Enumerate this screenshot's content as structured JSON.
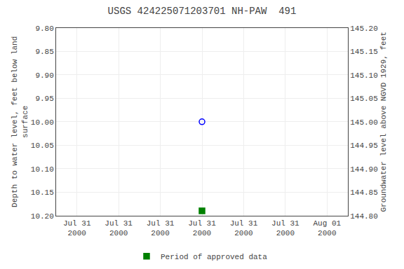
{
  "chart_data": {
    "type": "scatter",
    "title": "USGS 424225071203701 NH-PAW  491",
    "y_label": "Depth to water level, feet below land\nsurface",
    "y2_label": "Groundwater level above NGVD 1929, feet",
    "categories": [
      "Jul 31\n2000",
      "Jul 31\n2000",
      "Jul 31\n2000",
      "Jul 31\n2000",
      "Jul 31\n2000",
      "Jul 31\n2000",
      "Aug 01\n2000"
    ],
    "series": [
      {
        "color": "blue",
        "marker": "circle-open",
        "values": [
          null,
          null,
          null,
          10.0,
          null,
          null,
          null
        ]
      },
      {
        "name": "Period of approved data",
        "color": "#008000",
        "marker": "square",
        "values": [
          null,
          null,
          null,
          10.19,
          null,
          null,
          null
        ]
      }
    ],
    "ylim": [
      10.2,
      9.8
    ],
    "yticks": [
      {
        "value": 9.8,
        "label": "9.80"
      },
      9.85,
      {
        "value": 9.9,
        "label": "9.90"
      },
      9.95,
      {
        "value": 10,
        "label": "10.00"
      },
      10.05,
      {
        "value": 10.1,
        "label": "10.10"
      },
      10.15,
      {
        "value": 10.2,
        "label": "10.20"
      }
    ],
    "y2lim": [
      144.8,
      145.2
    ],
    "y2ticks": [
      {
        "value": 145.2,
        "label": "145.20"
      },
      145.15,
      {
        "value": 145.1,
        "label": "145.10"
      },
      145.05,
      {
        "value": 145,
        "label": "145.00"
      },
      144.95,
      {
        "value": 144.9,
        "label": "144.90"
      },
      144.85,
      {
        "value": 144.8,
        "label": "144.80"
      }
    ],
    "grid": true,
    "legend": "bottom"
  }
}
